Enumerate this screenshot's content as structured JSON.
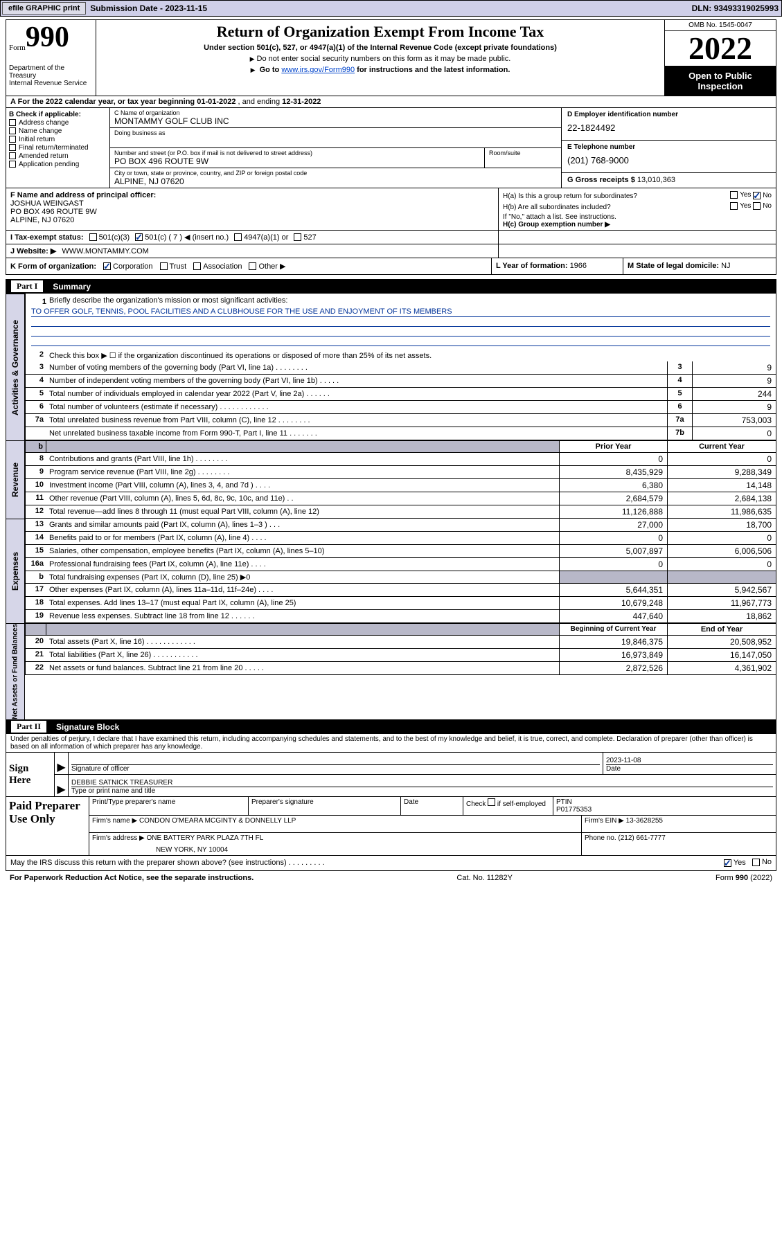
{
  "top": {
    "efile": "efile GRAPHIC print",
    "subdate_lab": "Submission Date - ",
    "subdate": "2023-11-15",
    "dln_lab": "DLN: ",
    "dln": "93493319025993"
  },
  "header": {
    "form_word": "Form",
    "form_no": "990",
    "dept": "Department of the Treasury",
    "irs": "Internal Revenue Service",
    "title": "Return of Organization Exempt From Income Tax",
    "sub1": "Under section 501(c), 527, or 4947(a)(1) of the Internal Revenue Code (except private foundations)",
    "note1": "Do not enter social security numbers on this form as it may be made public.",
    "note2_a": "Go to ",
    "note2_link": "www.irs.gov/Form990",
    "note2_b": " for instructions and the latest information.",
    "omb": "OMB No. 1545-0047",
    "year": "2022",
    "open_pub": "Open to Public Inspection"
  },
  "rowA": {
    "text_a": "A For the 2022 calendar year, or tax year beginning ",
    "beg": "01-01-2022",
    "text_b": " , and ending ",
    "end": "12-31-2022"
  },
  "B": {
    "head": "B Check if applicable:",
    "addr": "Address change",
    "name": "Name change",
    "init": "Initial return",
    "final": "Final return/terminated",
    "amend": "Amended return",
    "app": "Application pending"
  },
  "C": {
    "name_lab": "C Name of organization",
    "name_val": "MONTAMMY GOLF CLUB INC",
    "dba_lab": "Doing business as",
    "street_lab": "Number and street (or P.O. box if mail is not delivered to street address)",
    "street_val": "PO BOX 496 ROUTE 9W",
    "room_lab": "Room/suite",
    "city_lab": "City or town, state or province, country, and ZIP or foreign postal code",
    "city_val": "ALPINE, NJ  07620"
  },
  "D": {
    "lab": "D Employer identification number",
    "val": "22-1824492"
  },
  "E": {
    "lab": "E Telephone number",
    "val": "(201) 768-9000"
  },
  "G": {
    "lab": "G Gross receipts $ ",
    "val": "13,010,363"
  },
  "F": {
    "lab": "F Name and address of principal officer:",
    "l1": "JOSHUA WEINGAST",
    "l2": "PO BOX 496 ROUTE 9W",
    "l3": "ALPINE, NJ  07620"
  },
  "H": {
    "ha": "H(a) Is this a group return for subordinates?",
    "hb": "H(b) Are all subordinates included?",
    "hb_note": "If \"No,\" attach a list. See instructions.",
    "hc": "H(c) Group exemption number ▶",
    "yes": "Yes",
    "no": "No"
  },
  "I": {
    "lab": "I   Tax-exempt status:",
    "o1": "501(c)(3)",
    "o2a": "501(c) ( ",
    "o2b": "7",
    "o2c": " ) ◀ (insert no.)",
    "o3": "4947(a)(1) or",
    "o4": "527"
  },
  "J": {
    "lab": "J   Website: ▶",
    "val": " WWW.MONTAMMY.COM"
  },
  "K": {
    "lab": "K Form of organization:",
    "corp": "Corporation",
    "trust": "Trust",
    "assoc": "Association",
    "other": "Other ▶"
  },
  "L": {
    "lab": "L Year of formation: ",
    "val": "1966"
  },
  "M": {
    "lab": "M State of legal domicile: ",
    "val": "NJ"
  },
  "part1": {
    "tag": "Part I",
    "title": "Summary"
  },
  "s1": {
    "q": "Briefly describe the organization's mission or most significant activities:",
    "a": "TO OFFER GOLF, TENNIS, POOL FACILITIES AND A CLUBHOUSE FOR THE USE AND ENJOYMENT OF ITS MEMBERS"
  },
  "s2": "Check this box ▶ ☐ if the organization discontinued its operations or disposed of more than 25% of its net assets.",
  "summary_side1": "Activities & Governance",
  "summary_side2": "Revenue",
  "summary_side3": "Expenses",
  "summary_side4": "Net Assets or Fund Balances",
  "gov_rows": [
    {
      "n": "3",
      "t": "Number of voting members of the governing body (Part VI, line 1a)  .   .   .   .   .   .   .   .",
      "b": "3",
      "v": "9"
    },
    {
      "n": "4",
      "t": "Number of independent voting members of the governing body (Part VI, line 1b)  .   .   .   .   .",
      "b": "4",
      "v": "9"
    },
    {
      "n": "5",
      "t": "Total number of individuals employed in calendar year 2022 (Part V, line 2a)  .   .   .   .   .   .",
      "b": "5",
      "v": "244"
    },
    {
      "n": "6",
      "t": "Total number of volunteers (estimate if necessary)  .   .   .   .   .   .   .   .   .   .   .   .",
      "b": "6",
      "v": "9"
    },
    {
      "n": "7a",
      "t": "Total unrelated business revenue from Part VIII, column (C), line 12  .   .   .   .   .   .   .   .",
      "b": "7a",
      "v": "753,003"
    },
    {
      "n": "",
      "t": "Net unrelated business taxable income from Form 990-T, Part I, line 11  .   .   .   .   .   .   .",
      "b": "7b",
      "v": "0"
    }
  ],
  "val_head": {
    "py": "Prior Year",
    "cy": "Current Year",
    "boy": "Beginning of Current Year",
    "eoy": "End of Year"
  },
  "rev_rows": [
    {
      "n": "8",
      "t": "Contributions and grants (Part VIII, line 1h)  .   .   .   .   .   .   .   .",
      "py": "0",
      "cy": "0"
    },
    {
      "n": "9",
      "t": "Program service revenue (Part VIII, line 2g)  .   .   .   .   .   .   .   .",
      "py": "8,435,929",
      "cy": "9,288,349"
    },
    {
      "n": "10",
      "t": "Investment income (Part VIII, column (A), lines 3, 4, and 7d )  .   .   .   .",
      "py": "6,380",
      "cy": "14,148"
    },
    {
      "n": "11",
      "t": "Other revenue (Part VIII, column (A), lines 5, 6d, 8c, 9c, 10c, and 11e)  .   .",
      "py": "2,684,579",
      "cy": "2,684,138"
    },
    {
      "n": "12",
      "t": "Total revenue—add lines 8 through 11 (must equal Part VIII, column (A), line 12)",
      "py": "11,126,888",
      "cy": "11,986,635"
    }
  ],
  "exp_rows": [
    {
      "n": "13",
      "t": "Grants and similar amounts paid (Part IX, column (A), lines 1–3 )  .   .   .",
      "py": "27,000",
      "cy": "18,700"
    },
    {
      "n": "14",
      "t": "Benefits paid to or for members (Part IX, column (A), line 4)  .   .   .   .",
      "py": "0",
      "cy": "0"
    },
    {
      "n": "15",
      "t": "Salaries, other compensation, employee benefits (Part IX, column (A), lines 5–10)",
      "py": "5,007,897",
      "cy": "6,006,506"
    },
    {
      "n": "16a",
      "t": "Professional fundraising fees (Part IX, column (A), line 11e)  .   .   .   .",
      "py": "0",
      "cy": "0"
    },
    {
      "n": "b",
      "t": "Total fundraising expenses (Part IX, column (D), line 25) ▶0",
      "py": "__GREY__",
      "cy": "__GREY__"
    },
    {
      "n": "17",
      "t": "Other expenses (Part IX, column (A), lines 11a–11d, 11f–24e)  .   .   .   .",
      "py": "5,644,351",
      "cy": "5,942,567"
    },
    {
      "n": "18",
      "t": "Total expenses. Add lines 13–17 (must equal Part IX, column (A), line 25)",
      "py": "10,679,248",
      "cy": "11,967,773"
    },
    {
      "n": "19",
      "t": "Revenue less expenses. Subtract line 18 from line 12  .   .   .   .   .   .",
      "py": "447,640",
      "cy": "18,862"
    }
  ],
  "na_rows": [
    {
      "n": "20",
      "t": "Total assets (Part X, line 16)  .   .   .   .   .   .   .   .   .   .   .   .",
      "py": "19,846,375",
      "cy": "20,508,952"
    },
    {
      "n": "21",
      "t": "Total liabilities (Part X, line 26)  .   .   .   .   .   .   .   .   .   .   .",
      "py": "16,973,849",
      "cy": "16,147,050"
    },
    {
      "n": "22",
      "t": "Net assets or fund balances. Subtract line 21 from line 20  .   .   .   .   .",
      "py": "2,872,526",
      "cy": "4,361,902"
    }
  ],
  "part2": {
    "tag": "Part II",
    "title": "Signature Block"
  },
  "penalty": "Under penalties of perjury, I declare that I have examined this return, including accompanying schedules and statements, and to the best of my knowledge and belief, it is true, correct, and complete. Declaration of preparer (other than officer) is based on all information of which preparer has any knowledge.",
  "sign": {
    "here": "Sign Here",
    "sig_lab": "Signature of officer",
    "date_lab": "Date",
    "date_val": "2023-11-08",
    "name_val": "DEBBIE SATNICK  TREASURER",
    "name_lab": "Type or print name and title"
  },
  "prep": {
    "lab": "Paid Preparer Use Only",
    "h1": "Print/Type preparer's name",
    "h2": "Preparer's signature",
    "h3": "Date",
    "h4a": "Check",
    "h4b": "if self-employed",
    "h5": "PTIN",
    "ptin": "P01775353",
    "firm_lab": "Firm's name   ▶",
    "firm_val": " CONDON O'MEARA MCGINTY & DONNELLY LLP",
    "ein_lab": "Firm's EIN ▶ ",
    "ein_val": "13-3628255",
    "addr_lab": "Firm's address ▶",
    "addr1": "ONE BATTERY PARK PLAZA 7TH FL",
    "addr2": "NEW YORK, NY  10004",
    "phone_lab": "Phone no. ",
    "phone_val": "(212) 661-7777"
  },
  "mayrow": {
    "q": "May the IRS discuss this return with the preparer shown above? (see instructions)  .    .    .    .    .    .    .    .    .",
    "yes": "Yes",
    "no": "No"
  },
  "footer": {
    "l": "For Paperwork Reduction Act Notice, see the separate instructions.",
    "m": "Cat. No. 11282Y",
    "r": "Form 990 (2022)"
  }
}
